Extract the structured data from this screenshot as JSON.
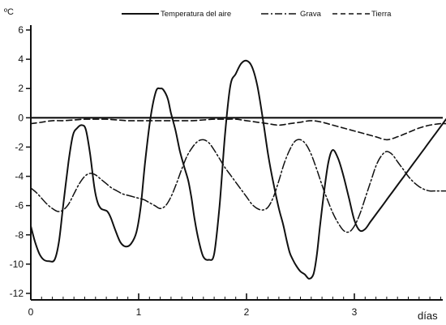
{
  "chart_data": {
    "type": "line",
    "y_unit": "ºC",
    "x_unit": "días",
    "xlim": [
      0,
      3.85
    ],
    "ylim": [
      -12.5,
      6
    ],
    "x_ticks": [
      0,
      1,
      2,
      3
    ],
    "x_tick_labels": [
      "0",
      "1",
      "2",
      "3"
    ],
    "y_ticks": [
      6,
      4,
      2,
      0,
      -2,
      -4,
      -6,
      -8,
      -10,
      -12
    ],
    "y_tick_labels": [
      "6",
      "4",
      "2",
      "0",
      "-2",
      "-4",
      "-6",
      "-8",
      "-10",
      "-12"
    ],
    "legend_position": "top",
    "series": [
      {
        "name": "Temperatura del aire",
        "style": "solid",
        "x": [
          0,
          0.04,
          0.08,
          0.12,
          0.17,
          0.22,
          0.26,
          0.3,
          0.35,
          0.39,
          0.43,
          0.47,
          0.51,
          0.55,
          0.59,
          0.62,
          0.65,
          0.68,
          0.71,
          0.74,
          0.78,
          0.83,
          0.88,
          0.93,
          0.98,
          1.02,
          1.06,
          1.11,
          1.16,
          1.2,
          1.23,
          1.27,
          1.3,
          1.34,
          1.38,
          1.42,
          1.46,
          1.49,
          1.52,
          1.56,
          1.6,
          1.65,
          1.7,
          1.75,
          1.8,
          1.85,
          1.9,
          1.95,
          2.0,
          2.05,
          2.1,
          2.15,
          2.2,
          2.25,
          2.3,
          2.34,
          2.37,
          2.4,
          2.43,
          2.46,
          2.5,
          2.54,
          2.58,
          2.62,
          2.65,
          2.68,
          2.72,
          2.76,
          2.8,
          2.85,
          2.9,
          2.95,
          3.0,
          3.05,
          3.1,
          3.15,
          3.2,
          3.25,
          3.3,
          3.35,
          3.4,
          3.45,
          3.5,
          3.55,
          3.6,
          3.65,
          3.7,
          3.75,
          3.8,
          3.85
        ],
        "values": [
          -7.4,
          -8.5,
          -9.3,
          -9.7,
          -9.8,
          -9.7,
          -8.5,
          -6.0,
          -3.0,
          -1.2,
          -0.7,
          -0.5,
          -0.8,
          -2.5,
          -4.8,
          -5.8,
          -6.2,
          -6.3,
          -6.4,
          -6.8,
          -7.6,
          -8.5,
          -8.8,
          -8.6,
          -7.8,
          -6.0,
          -3.0,
          0.0,
          1.8,
          2.0,
          1.9,
          1.3,
          0.3,
          -0.8,
          -2.2,
          -3.3,
          -4.3,
          -5.5,
          -7.0,
          -8.5,
          -9.5,
          -9.7,
          -9.3,
          -6.0,
          -1.2,
          2.2,
          3.0,
          3.7,
          3.9,
          3.5,
          2.2,
          0.0,
          -2.5,
          -4.5,
          -6.2,
          -7.3,
          -8.3,
          -9.2,
          -9.7,
          -10.1,
          -10.5,
          -10.7,
          -11.0,
          -10.7,
          -9.5,
          -7.5,
          -5.0,
          -3.0,
          -2.2,
          -2.8,
          -4.0,
          -5.5,
          -7.0,
          -7.7,
          -7.6,
          -7.1,
          -6.6,
          -6.1,
          -5.6,
          -5.1,
          -4.6,
          -4.1,
          -3.6,
          -3.1,
          -2.6,
          -2.1,
          -1.6,
          -1.1,
          -0.6,
          -0.1
        ]
      },
      {
        "name": "Grava",
        "style": "dashdot",
        "x": [
          0,
          0.05,
          0.1,
          0.15,
          0.2,
          0.25,
          0.3,
          0.35,
          0.4,
          0.45,
          0.5,
          0.55,
          0.6,
          0.65,
          0.7,
          0.75,
          0.8,
          0.85,
          0.9,
          0.95,
          1.0,
          1.05,
          1.1,
          1.15,
          1.2,
          1.25,
          1.3,
          1.35,
          1.4,
          1.45,
          1.5,
          1.55,
          1.6,
          1.65,
          1.7,
          1.75,
          1.8,
          1.85,
          1.9,
          1.95,
          2.0,
          2.05,
          2.1,
          2.15,
          2.2,
          2.25,
          2.3,
          2.35,
          2.4,
          2.45,
          2.5,
          2.55,
          2.6,
          2.65,
          2.7,
          2.75,
          2.8,
          2.85,
          2.9,
          2.95,
          3.0,
          3.05,
          3.1,
          3.15,
          3.2,
          3.25,
          3.3,
          3.35,
          3.4,
          3.45,
          3.5,
          3.55,
          3.6,
          3.65,
          3.7,
          3.75,
          3.8,
          3.85
        ],
        "values": [
          -4.8,
          -5.1,
          -5.5,
          -5.9,
          -6.2,
          -6.4,
          -6.3,
          -5.9,
          -5.2,
          -4.5,
          -4.0,
          -3.8,
          -3.9,
          -4.2,
          -4.5,
          -4.8,
          -5.0,
          -5.2,
          -5.3,
          -5.4,
          -5.5,
          -5.6,
          -5.8,
          -6.0,
          -6.2,
          -6.0,
          -5.4,
          -4.5,
          -3.5,
          -2.6,
          -2.0,
          -1.6,
          -1.5,
          -1.7,
          -2.2,
          -2.8,
          -3.4,
          -3.9,
          -4.4,
          -4.9,
          -5.4,
          -5.9,
          -6.2,
          -6.3,
          -6.1,
          -5.4,
          -4.3,
          -3.1,
          -2.2,
          -1.6,
          -1.5,
          -1.8,
          -2.5,
          -3.5,
          -4.6,
          -5.6,
          -6.5,
          -7.2,
          -7.7,
          -7.8,
          -7.4,
          -6.6,
          -5.5,
          -4.4,
          -3.3,
          -2.6,
          -2.3,
          -2.5,
          -3.0,
          -3.5,
          -4.0,
          -4.4,
          -4.7,
          -4.9,
          -5.0,
          -5.0,
          -5.0,
          -5.0
        ]
      },
      {
        "name": "Tierra",
        "style": "dashed",
        "x": [
          0,
          0.1,
          0.2,
          0.3,
          0.4,
          0.5,
          0.6,
          0.7,
          0.8,
          0.9,
          1.0,
          1.1,
          1.2,
          1.3,
          1.4,
          1.5,
          1.6,
          1.7,
          1.8,
          1.9,
          2.0,
          2.1,
          2.2,
          2.3,
          2.4,
          2.5,
          2.6,
          2.7,
          2.8,
          2.9,
          3.0,
          3.1,
          3.2,
          3.3,
          3.4,
          3.5,
          3.6,
          3.7,
          3.8,
          3.85
        ],
        "values": [
          -0.4,
          -0.3,
          -0.2,
          -0.2,
          -0.15,
          -0.1,
          -0.1,
          -0.1,
          -0.15,
          -0.2,
          -0.2,
          -0.2,
          -0.2,
          -0.2,
          -0.2,
          -0.2,
          -0.15,
          -0.1,
          -0.1,
          -0.1,
          -0.2,
          -0.3,
          -0.4,
          -0.5,
          -0.4,
          -0.3,
          -0.2,
          -0.3,
          -0.5,
          -0.7,
          -0.9,
          -1.1,
          -1.3,
          -1.5,
          -1.3,
          -1.0,
          -0.7,
          -0.5,
          -0.4,
          -0.4
        ]
      }
    ]
  }
}
